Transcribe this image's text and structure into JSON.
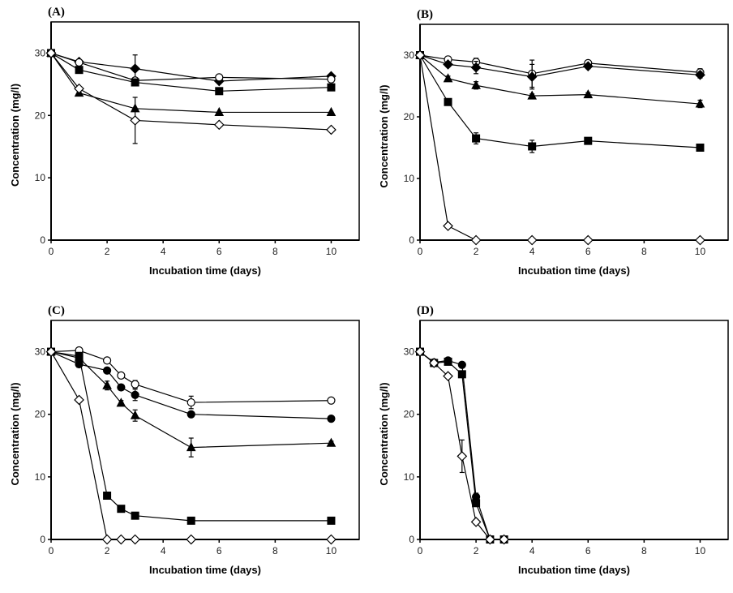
{
  "figure": {
    "panels_count": 4
  },
  "chart_data": [
    {
      "type": "line",
      "panel_label": "(A)",
      "title": "",
      "xlabel": "Incubation time (days)",
      "ylabel": "Concentration (mg/l)",
      "xlim": [
        0,
        11
      ],
      "ylim": [
        0,
        35
      ],
      "xticks": [
        0,
        2,
        4,
        6,
        8,
        10
      ],
      "yticks": [
        0,
        10,
        20,
        30
      ],
      "grid": false,
      "legend": "none",
      "series": [
        {
          "name": "filled-diamond",
          "marker": "diamond-filled",
          "x": [
            0,
            1,
            3,
            6,
            10
          ],
          "y": [
            30,
            28.6,
            27.5,
            25.5,
            26.3
          ],
          "err": [
            0,
            0,
            2.2,
            0,
            0
          ]
        },
        {
          "name": "open-circle",
          "marker": "circle-open",
          "x": [
            0,
            1,
            3,
            6,
            10
          ],
          "y": [
            30,
            28.5,
            25.6,
            26.1,
            25.8
          ],
          "err": [
            0,
            0,
            0,
            0,
            0.4
          ]
        },
        {
          "name": "filled-square",
          "marker": "square-filled",
          "x": [
            0,
            1,
            3,
            6,
            10
          ],
          "y": [
            30,
            27.3,
            25.3,
            23.9,
            24.5
          ],
          "err": [
            0,
            0,
            0,
            0,
            0
          ]
        },
        {
          "name": "filled-triangle",
          "marker": "triangle-filled",
          "x": [
            0,
            1,
            3,
            6,
            10
          ],
          "y": [
            30,
            23.6,
            21.1,
            20.5,
            20.5
          ],
          "err": [
            0,
            0,
            0,
            0,
            0
          ]
        },
        {
          "name": "open-diamond",
          "marker": "diamond-open",
          "x": [
            0,
            1,
            3,
            6,
            10
          ],
          "y": [
            30,
            24.3,
            19.2,
            18.5,
            17.7
          ],
          "err": [
            0,
            0,
            3.7,
            0,
            0
          ]
        }
      ]
    },
    {
      "type": "line",
      "panel_label": "(B)",
      "title": "",
      "xlabel": "Incubation time (days)",
      "ylabel": "Concentration (mg/l)",
      "xlim": [
        0,
        11
      ],
      "ylim": [
        0,
        35
      ],
      "xticks": [
        0,
        2,
        4,
        6,
        8,
        10
      ],
      "yticks": [
        0,
        10,
        20,
        30
      ],
      "grid": false,
      "legend": "none",
      "series": [
        {
          "name": "open-circle",
          "marker": "circle-open",
          "x": [
            0,
            1,
            2,
            4,
            6,
            10
          ],
          "y": [
            30,
            29.3,
            28.9,
            27.0,
            28.7,
            27.2
          ],
          "err": [
            0,
            0.5,
            0.6,
            2.2,
            0.4,
            0.6
          ]
        },
        {
          "name": "filled-diamond",
          "marker": "diamond-filled",
          "x": [
            0,
            1,
            2,
            4,
            6,
            10
          ],
          "y": [
            30,
            28.5,
            28.0,
            26.5,
            28.2,
            26.8
          ],
          "err": [
            0,
            0.4,
            1.0,
            2.0,
            0.4,
            0.5
          ]
        },
        {
          "name": "filled-triangle",
          "marker": "triangle-filled",
          "x": [
            0,
            1,
            2,
            4,
            6,
            10
          ],
          "y": [
            30,
            26.2,
            25.1,
            23.4,
            23.6,
            22.1
          ],
          "err": [
            0,
            0.4,
            0.6,
            0.3,
            0.3,
            0.6
          ]
        },
        {
          "name": "filled-square",
          "marker": "square-filled",
          "x": [
            0,
            1,
            2,
            4,
            6,
            10
          ],
          "y": [
            30,
            22.4,
            16.5,
            15.2,
            16.1,
            15.0
          ],
          "err": [
            0,
            0.5,
            0.9,
            1.0,
            0.3,
            0.3
          ]
        },
        {
          "name": "open-diamond",
          "marker": "diamond-open",
          "x": [
            0,
            1,
            2,
            4,
            6,
            10
          ],
          "y": [
            30,
            2.3,
            0,
            0,
            0,
            0
          ],
          "err": [
            0,
            0.3,
            0,
            0,
            0,
            0
          ]
        }
      ]
    },
    {
      "type": "line",
      "panel_label": "(C)",
      "title": "",
      "xlabel": "Incubation time (days)",
      "ylabel": "Concentration (mg/l)",
      "xlim": [
        0,
        11
      ],
      "ylim": [
        0,
        35
      ],
      "xticks": [
        0,
        2,
        4,
        6,
        8,
        10
      ],
      "yticks": [
        0,
        10,
        20,
        30
      ],
      "grid": false,
      "legend": "none",
      "series": [
        {
          "name": "open-circle",
          "marker": "circle-open",
          "x": [
            0,
            1,
            2,
            2.5,
            3,
            5,
            10
          ],
          "y": [
            30,
            30.2,
            28.6,
            26.2,
            24.8,
            21.9,
            22.2
          ],
          "err": [
            0,
            0.3,
            0.4,
            0.3,
            0.6,
            1.0,
            0.3
          ]
        },
        {
          "name": "filled-circle",
          "marker": "circle-filled",
          "x": [
            0,
            1,
            2,
            2.5,
            3,
            5,
            10
          ],
          "y": [
            30,
            28.0,
            27.0,
            24.3,
            23.1,
            20.0,
            19.3
          ],
          "err": [
            0,
            0.5,
            0.3,
            0.3,
            0.9,
            0.3,
            0.3
          ]
        },
        {
          "name": "filled-triangle",
          "marker": "triangle-filled",
          "x": [
            0,
            1,
            2,
            2.5,
            3,
            5,
            10
          ],
          "y": [
            30,
            29.0,
            24.6,
            21.8,
            19.8,
            14.7,
            15.4
          ],
          "err": [
            0,
            0.5,
            0.7,
            0.4,
            0.9,
            1.5,
            0.3
          ]
        },
        {
          "name": "filled-square",
          "marker": "square-filled",
          "x": [
            0,
            1,
            2,
            2.5,
            3,
            5,
            10
          ],
          "y": [
            30,
            29.3,
            7.0,
            4.9,
            3.8,
            3.0,
            3.0
          ],
          "err": [
            0,
            0.6,
            0.3,
            0.3,
            0.3,
            0.3,
            0.3
          ]
        },
        {
          "name": "open-diamond",
          "marker": "diamond-open",
          "x": [
            0,
            1,
            2,
            2.5,
            3,
            5,
            10
          ],
          "y": [
            30,
            22.3,
            0,
            0,
            0,
            0,
            0
          ],
          "err": [
            0,
            0.4,
            0,
            0,
            0,
            0,
            0
          ]
        }
      ]
    },
    {
      "type": "line",
      "panel_label": "(D)",
      "title": "",
      "xlabel": "Incubation time (days)",
      "ylabel": "Concentration (mg/l)",
      "xlim": [
        0,
        11
      ],
      "ylim": [
        0,
        35
      ],
      "xticks": [
        0,
        2,
        4,
        6,
        8,
        10
      ],
      "yticks": [
        0,
        10,
        20,
        30
      ],
      "grid": false,
      "legend": "none",
      "series": [
        {
          "name": "filled-circle",
          "marker": "circle-filled",
          "x": [
            0,
            0.5,
            1,
            1.5,
            2,
            2.5,
            3
          ],
          "y": [
            30,
            28.3,
            28.6,
            27.9,
            6.8,
            0,
            0
          ],
          "err": [
            0,
            0.3,
            0.3,
            0.4,
            0.6,
            0,
            0
          ]
        },
        {
          "name": "filled-square",
          "marker": "square-filled",
          "x": [
            0,
            0.5,
            1,
            1.5,
            2,
            2.5,
            3
          ],
          "y": [
            30,
            28.2,
            28.4,
            26.4,
            5.8,
            0,
            0
          ],
          "err": [
            0,
            0.3,
            0.3,
            0.4,
            0.5,
            0,
            0
          ]
        },
        {
          "name": "open-diamond",
          "marker": "diamond-open",
          "x": [
            0,
            0.5,
            1,
            1.5,
            2,
            2.5,
            3
          ],
          "y": [
            30,
            28.2,
            26.1,
            13.3,
            2.8,
            0,
            0
          ],
          "err": [
            0,
            0.3,
            0.3,
            2.6,
            0.4,
            0,
            0
          ]
        }
      ]
    }
  ]
}
